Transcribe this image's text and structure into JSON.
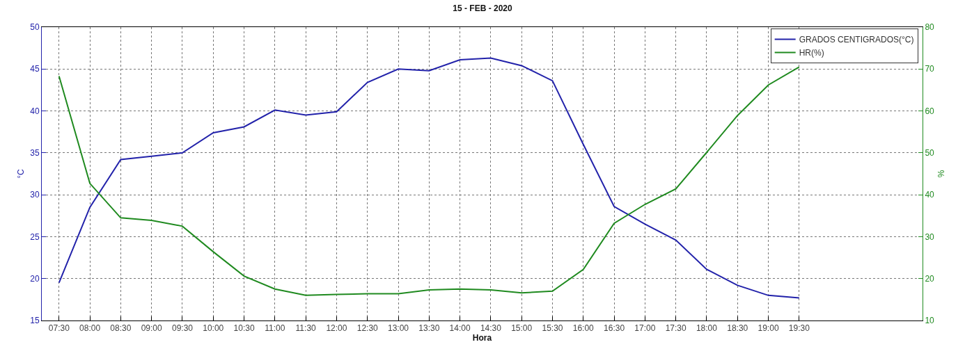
{
  "chart_data": {
    "type": "line",
    "title": "15 - FEB - 2020",
    "xlabel": "Hora",
    "ylabel": "°C",
    "y2label": "%",
    "x": [
      7.5,
      8,
      8.5,
      9,
      9.5,
      10,
      10.5,
      11,
      11.5,
      12,
      12.5,
      13,
      13.5,
      14,
      14.5,
      15,
      15.5,
      16,
      16.5,
      17,
      17.5,
      18,
      18.5,
      19,
      19.5
    ],
    "series": [
      {
        "name": "GRADOS CENTIGRADOS(°C)",
        "color": "#2222aa",
        "values": [
          19.5,
          28.5,
          34.2,
          34.6,
          35.0,
          37.4,
          38.1,
          40.1,
          39.5,
          39.9,
          43.4,
          45.0,
          44.8,
          46.1,
          46.3,
          45.4,
          43.6,
          36.0,
          28.6,
          26.5,
          24.6,
          21.1,
          19.2,
          18.0,
          17.7
        ]
      },
      {
        "name": "HR(%)",
        "color": "#1f8a1f",
        "axis": "y2",
        "values": [
          68.3,
          42.7,
          34.5,
          33.9,
          32.5,
          26.4,
          20.6,
          17.5,
          16.0,
          16.2,
          16.4,
          16.4,
          17.3,
          17.5,
          17.3,
          16.6,
          17.0,
          22.2,
          33.2,
          37.7,
          41.4,
          50.1,
          58.9,
          66.2,
          70.5
        ]
      }
    ],
    "xlim": [
      7.22,
      21.5
    ],
    "xticks": [
      {
        "value": 7.5,
        "label": "07:30"
      },
      {
        "value": 8,
        "label": "08:00"
      },
      {
        "value": 8.5,
        "label": "08:30"
      },
      {
        "value": 9,
        "label": "09:00"
      },
      {
        "value": 9.5,
        "label": "09:30"
      },
      {
        "value": 10,
        "label": "10:00"
      },
      {
        "value": 10.5,
        "label": "10:30"
      },
      {
        "value": 11,
        "label": "11:00"
      },
      {
        "value": 11.5,
        "label": "11:30"
      },
      {
        "value": 12,
        "label": "12:00"
      },
      {
        "value": 12.5,
        "label": "12:30"
      },
      {
        "value": 13,
        "label": "13:00"
      },
      {
        "value": 13.5,
        "label": "13:30"
      },
      {
        "value": 14,
        "label": "14:00"
      },
      {
        "value": 14.5,
        "label": "14:30"
      },
      {
        "value": 15,
        "label": "15:00"
      },
      {
        "value": 15.5,
        "label": "15:30"
      },
      {
        "value": 16,
        "label": "16:00"
      },
      {
        "value": 16.5,
        "label": "16:30"
      },
      {
        "value": 17,
        "label": "17:00"
      },
      {
        "value": 17.5,
        "label": "17:30"
      },
      {
        "value": 18,
        "label": "18:00"
      },
      {
        "value": 18.5,
        "label": "18:30"
      },
      {
        "value": 19,
        "label": "19:00"
      },
      {
        "value": 19.5,
        "label": "19:30"
      }
    ],
    "ylim": [
      15,
      50
    ],
    "yticks": [
      15,
      20,
      25,
      30,
      35,
      40,
      45,
      50
    ],
    "y2lim": [
      10,
      80
    ],
    "y2ticks": [
      10,
      20,
      30,
      40,
      50,
      60,
      70,
      80
    ],
    "grid": true,
    "legend": "top right",
    "line_style": "solid",
    "marker": "none"
  }
}
